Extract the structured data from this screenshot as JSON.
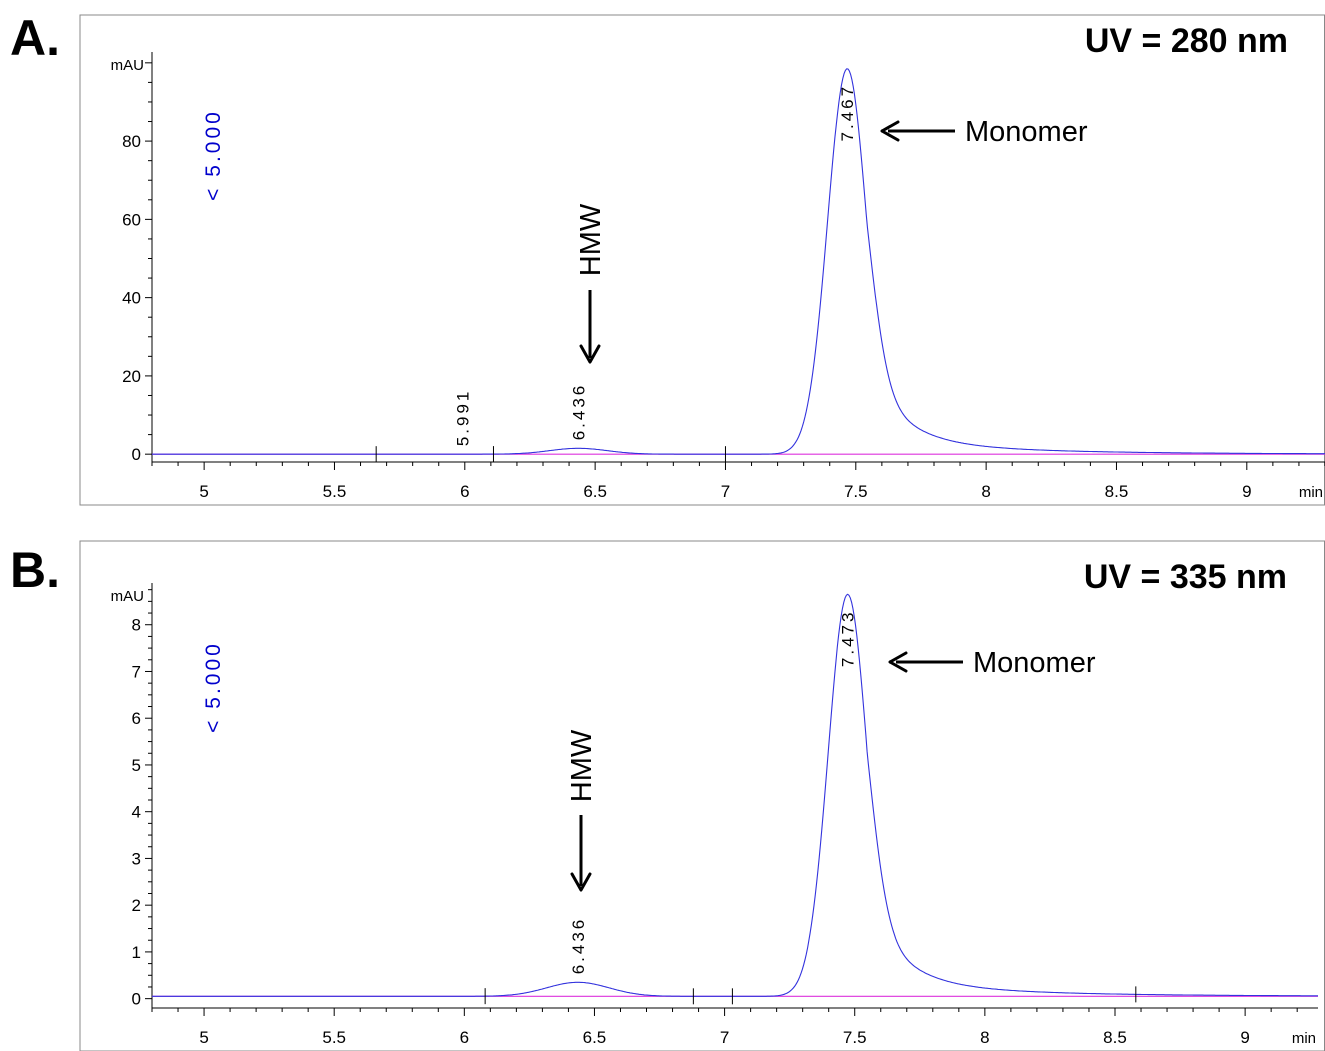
{
  "chart_data": [
    {
      "type": "line",
      "panel": "A.",
      "title": "UV = 280 nm",
      "ylabel": "mAU",
      "xlabel": "min",
      "xlim": [
        4.8,
        9.3
      ],
      "ylim": [
        -2,
        102
      ],
      "xticks": [
        5,
        5.5,
        6,
        6.5,
        7,
        7.5,
        8,
        8.5,
        9
      ],
      "xtick_labels": [
        "5",
        "5.5",
        "6",
        "6.5",
        "7",
        "7.5",
        "8",
        "8.5",
        "9"
      ],
      "yticks": [
        0,
        20,
        40,
        60,
        80
      ],
      "ytick_labels": [
        "0",
        "20",
        "40",
        "60",
        "80"
      ],
      "scale_marker": "< 5.000",
      "baseline": 0,
      "peaks": [
        {
          "rt": 5.991,
          "label": "5.991",
          "height": 0.0,
          "width": 0.05
        },
        {
          "rt": 6.436,
          "label": "6.436",
          "height": 1.5,
          "width": 0.11
        },
        {
          "rt": 7.467,
          "label": "7.467",
          "height": 98.5,
          "width": 0.075,
          "tail": 0.13
        }
      ],
      "integration_marks": [
        5.66,
        6.11,
        7.0
      ],
      "annotations": [
        {
          "text": "Monomer",
          "target_rt": 7.467
        },
        {
          "text": "HMW",
          "target_rt": 6.436
        }
      ],
      "grid": false,
      "series_color": "#3333dd",
      "baseline_color": "#dd33dd"
    },
    {
      "type": "line",
      "panel": "B.",
      "title": "UV = 335 nm",
      "ylabel": "mAU",
      "xlabel": "min",
      "xlim": [
        4.8,
        9.28
      ],
      "ylim": [
        -0.2,
        8.85
      ],
      "xticks": [
        5,
        5.5,
        6,
        6.5,
        7,
        7.5,
        8,
        8.5,
        9
      ],
      "xtick_labels": [
        "5",
        "5.5",
        "6",
        "6.5",
        "7",
        "7.5",
        "8",
        "8.5",
        "9"
      ],
      "yticks": [
        0,
        1,
        2,
        3,
        4,
        5,
        6,
        7,
        8
      ],
      "ytick_labels": [
        "0",
        "1",
        "2",
        "3",
        "4",
        "5",
        "6",
        "7",
        "8"
      ],
      "scale_marker": "< 5.000",
      "baseline": 0.05,
      "peaks": [
        {
          "rt": 6.436,
          "label": "6.436",
          "height": 0.3,
          "width": 0.12
        },
        {
          "rt": 7.473,
          "label": "7.473",
          "height": 8.6,
          "width": 0.075,
          "tail": 0.13
        }
      ],
      "integration_marks": [
        6.08,
        6.88,
        7.03,
        8.58
      ],
      "annotations": [
        {
          "text": "Monomer",
          "target_rt": 7.473
        },
        {
          "text": "HMW",
          "target_rt": 6.436
        }
      ],
      "grid": false,
      "series_color": "#3333dd",
      "baseline_color": "#dd33dd"
    }
  ]
}
